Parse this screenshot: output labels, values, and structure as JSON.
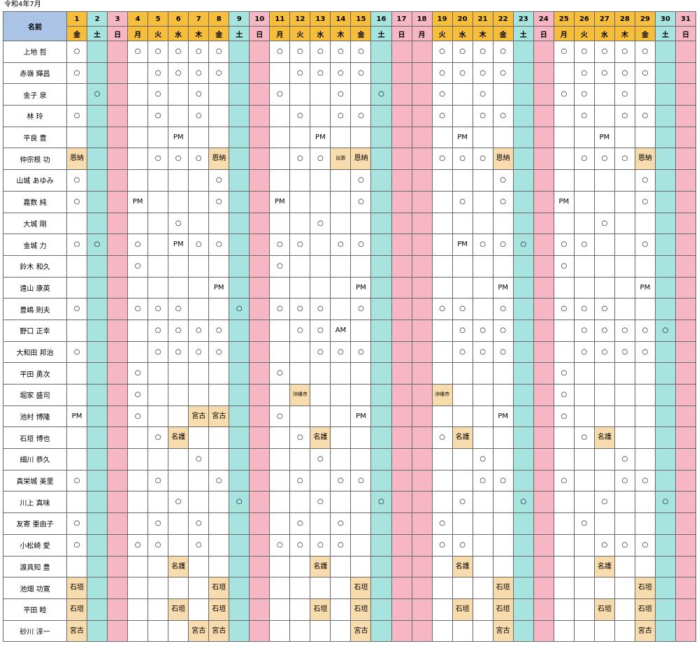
{
  "title": "令和4年7月",
  "name_header": "名前",
  "days": [
    "1",
    "2",
    "3",
    "4",
    "5",
    "6",
    "7",
    "8",
    "9",
    "10",
    "11",
    "12",
    "13",
    "14",
    "15",
    "16",
    "17",
    "18",
    "19",
    "20",
    "21",
    "22",
    "23",
    "24",
    "25",
    "26",
    "27",
    "28",
    "29",
    "30",
    "31"
  ],
  "weekdays": [
    "金",
    "土",
    "日",
    "月",
    "火",
    "水",
    "木",
    "金",
    "土",
    "日",
    "月",
    "火",
    "水",
    "木",
    "金",
    "土",
    "日",
    "月",
    "火",
    "水",
    "木",
    "金",
    "土",
    "日",
    "月",
    "火",
    "水",
    "木",
    "金",
    "土",
    "日"
  ],
  "day_types": [
    "w",
    "s",
    "u",
    "w",
    "w",
    "w",
    "w",
    "w",
    "s",
    "u",
    "w",
    "w",
    "w",
    "w",
    "w",
    "s",
    "u",
    "u",
    "w",
    "w",
    "w",
    "w",
    "s",
    "u",
    "w",
    "w",
    "w",
    "w",
    "w",
    "s",
    "u"
  ],
  "colors": {
    "weekday": "#f7be3b",
    "saturday": "#a7e3df",
    "sunday_holiday": "#f7b6c3",
    "name_header": "#a9c4e4",
    "tag": "#f9dcae"
  },
  "rows": [
    {
      "name": "上地 哲",
      "marks": {
        "1": "○",
        "4": "○",
        "5": "○",
        "6": "○",
        "7": "○",
        "8": "○",
        "11": "○",
        "12": "○",
        "13": "○",
        "14": "○",
        "15": "○",
        "19": "○",
        "20": "○",
        "21": "○",
        "22": "○",
        "25": "○",
        "26": "○",
        "27": "○",
        "28": "○",
        "29": "○"
      }
    },
    {
      "name": "赤嶺 輝昌",
      "marks": {
        "1": "○",
        "5": "○",
        "6": "○",
        "7": "○",
        "8": "○",
        "12": "○",
        "13": "○",
        "14": "○",
        "15": "○",
        "19": "○",
        "20": "○",
        "21": "○",
        "22": "○",
        "26": "○",
        "27": "○",
        "28": "○",
        "29": "○"
      }
    },
    {
      "name": "金子 泉",
      "marks": {
        "2": "○",
        "5": "○",
        "7": "○",
        "11": "○",
        "14": "○",
        "16": "○",
        "19": "○",
        "21": "○",
        "25": "○",
        "26": "○",
        "28": "○"
      }
    },
    {
      "name": "林 玲",
      "marks": {
        "1": "○",
        "5": "○",
        "7": "○",
        "12": "○",
        "14": "○",
        "15": "○",
        "19": "○",
        "21": "○",
        "22": "○",
        "26": "○",
        "28": "○",
        "29": "○"
      }
    },
    {
      "name": "平良 豊",
      "marks": {
        "6": "PM",
        "13": "PM",
        "20": "PM",
        "27": "PM"
      }
    },
    {
      "name": "仲宗根 功",
      "marks": {
        "1": "恩納",
        "5": "○",
        "6": "○",
        "7": "○",
        "8": "恩納",
        "12": "○",
        "13": "○",
        "14": "出張",
        "15": "恩納",
        "19": "○",
        "20": "○",
        "21": "○",
        "22": "恩納",
        "26": "○",
        "27": "○",
        "28": "○",
        "29": "恩納"
      }
    },
    {
      "name": "山城 あゆみ",
      "marks": {
        "1": "○",
        "8": "○",
        "15": "○",
        "22": "○",
        "29": "○"
      }
    },
    {
      "name": "嘉数 純",
      "marks": {
        "1": "○",
        "4": "PM",
        "8": "○",
        "11": "PM",
        "15": "○",
        "20": "○",
        "22": "○",
        "25": "PM",
        "29": "○"
      }
    },
    {
      "name": "大城 剛",
      "marks": {
        "6": "○",
        "13": "○",
        "27": "○"
      }
    },
    {
      "name": "金城 力",
      "marks": {
        "1": "○",
        "2": "○",
        "4": "○",
        "6": "PM",
        "7": "○",
        "8": "○",
        "11": "○",
        "12": "○",
        "14": "○",
        "15": "○",
        "20": "PM",
        "21": "○",
        "22": "○",
        "23": "○",
        "25": "○",
        "26": "○",
        "29": "○"
      }
    },
    {
      "name": "鈴木 和久",
      "marks": {
        "4": "○",
        "11": "○",
        "25": "○"
      }
    },
    {
      "name": "遠山 康英",
      "marks": {
        "8": "PM",
        "15": "PM",
        "22": "PM",
        "29": "PM"
      }
    },
    {
      "name": "豊嶋 則夫",
      "marks": {
        "1": "○",
        "4": "○",
        "5": "○",
        "6": "○",
        "9": "○",
        "11": "○",
        "12": "○",
        "13": "○",
        "15": "○",
        "19": "○",
        "20": "○",
        "22": "○",
        "25": "○",
        "26": "○",
        "27": "○"
      }
    },
    {
      "name": "野口 正幸",
      "marks": {
        "5": "○",
        "6": "○",
        "7": "○",
        "8": "○",
        "12": "○",
        "13": "○",
        "14": "AM",
        "20": "○",
        "21": "○",
        "22": "○",
        "26": "○",
        "27": "○",
        "28": "○",
        "29": "○",
        "30": "○"
      }
    },
    {
      "name": "大和田 邦治",
      "marks": {
        "1": "○",
        "5": "○",
        "6": "○",
        "7": "○",
        "8": "○",
        "13": "○",
        "14": "○",
        "15": "○",
        "20": "○",
        "21": "○",
        "22": "○",
        "26": "○",
        "27": "○",
        "28": "○",
        "29": "○"
      }
    },
    {
      "name": "平田 勇次",
      "marks": {
        "4": "○",
        "11": "○",
        "25": "○"
      }
    },
    {
      "name": "堀家 盛司",
      "marks": {
        "4": "○",
        "12": "沖縄市",
        "19": "沖縄市",
        "25": "○"
      }
    },
    {
      "name": "池村 博隆",
      "marks": {
        "1": "PM",
        "4": "○",
        "7": "宮古",
        "8": "宮古",
        "11": "○",
        "15": "PM",
        "22": "PM",
        "25": "○"
      }
    },
    {
      "name": "石垣 博也",
      "marks": {
        "5": "○",
        "6": "名護",
        "12": "○",
        "13": "名護",
        "19": "○",
        "20": "名護",
        "26": "○",
        "27": "名護"
      }
    },
    {
      "name": "細川 恭久",
      "marks": {
        "7": "○",
        "13": "○",
        "21": "○",
        "28": "○"
      }
    },
    {
      "name": "真栄城 美里",
      "marks": {
        "1": "○",
        "5": "○",
        "8": "○",
        "12": "○",
        "14": "○",
        "15": "○",
        "21": "○",
        "22": "○",
        "25": "○",
        "28": "○",
        "29": "○"
      }
    },
    {
      "name": "川上 真味",
      "marks": {
        "6": "○",
        "9": "○",
        "13": "○",
        "16": "○",
        "20": "○",
        "23": "○",
        "27": "○",
        "30": "○"
      }
    },
    {
      "name": "友寄 亜由子",
      "marks": {
        "1": "○",
        "5": "○",
        "7": "○",
        "12": "○",
        "14": "○",
        "19": "○",
        "26": "○"
      }
    },
    {
      "name": "小松崎 愛",
      "marks": {
        "1": "○",
        "4": "○",
        "5": "○",
        "7": "○",
        "11": "○",
        "12": "○",
        "13": "○",
        "14": "○",
        "19": "○",
        "20": "○",
        "27": "○",
        "28": "○",
        "29": "○"
      }
    },
    {
      "name": "渡具知 豊",
      "marks": {
        "6": "名護",
        "13": "名護",
        "20": "名護",
        "27": "名護"
      }
    },
    {
      "name": "池畑 功寛",
      "marks": {
        "1": "石垣",
        "8": "石垣",
        "15": "石垣",
        "22": "石垣",
        "29": "石垣"
      }
    },
    {
      "name": "平田 睦",
      "marks": {
        "1": "石垣",
        "6": "石垣",
        "8": "石垣",
        "13": "石垣",
        "15": "石垣",
        "20": "石垣",
        "22": "石垣",
        "27": "石垣",
        "29": "石垣"
      }
    },
    {
      "name": "砂川 淳一",
      "marks": {
        "1": "宮古",
        "7": "宮古",
        "8": "宮古",
        "15": "宮古",
        "22": "宮古",
        "29": "宮古"
      }
    }
  ]
}
